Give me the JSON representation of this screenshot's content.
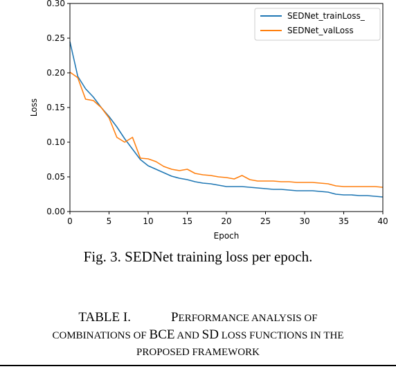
{
  "figure": {
    "caption": "Fig. 3. SEDNet training loss per epoch."
  },
  "table_title": {
    "label": "TABLE I.",
    "line1_big": "P",
    "line1_small": "ERFORMANCE ANALYSIS OF",
    "line2_small_a": "COMBINATIONS OF ",
    "line2_big_a": "BCE",
    "line2_small_b": " AND ",
    "line2_big_b": "SD",
    "line2_small_c": " LOSS FUNCTIONS IN THE",
    "line3_small": "PROPOSED FRAMEWORK"
  },
  "chart_data": {
    "type": "line",
    "xlabel": "Epoch",
    "ylabel": "Loss",
    "xlim": [
      0,
      40
    ],
    "ylim": [
      0,
      0.3
    ],
    "xticks": [
      "0",
      "5",
      "10",
      "15",
      "20",
      "25",
      "30",
      "35",
      "40"
    ],
    "yticks": [
      "0.00",
      "0.05",
      "0.10",
      "0.15",
      "0.20",
      "0.25",
      "0.30"
    ],
    "grid": false,
    "legend_position": "top-right",
    "x": [
      0,
      1,
      2,
      3,
      4,
      5,
      6,
      7,
      8,
      9,
      10,
      11,
      12,
      13,
      14,
      15,
      16,
      17,
      18,
      19,
      20,
      21,
      22,
      23,
      24,
      25,
      26,
      27,
      28,
      29,
      30,
      31,
      32,
      33,
      34,
      35,
      36,
      37,
      38,
      39,
      40
    ],
    "series": [
      {
        "name": "SEDNet_trainLoss_",
        "color": "#1f77b4",
        "values": [
          0.245,
          0.195,
          0.177,
          0.165,
          0.15,
          0.137,
          0.122,
          0.105,
          0.09,
          0.075,
          0.066,
          0.061,
          0.056,
          0.051,
          0.048,
          0.046,
          0.043,
          0.041,
          0.04,
          0.038,
          0.036,
          0.036,
          0.036,
          0.035,
          0.034,
          0.033,
          0.032,
          0.032,
          0.031,
          0.03,
          0.03,
          0.03,
          0.029,
          0.028,
          0.025,
          0.024,
          0.024,
          0.023,
          0.023,
          0.022,
          0.021
        ]
      },
      {
        "name": "SEDNet_valLoss",
        "color": "#ff7f0e",
        "values": [
          0.201,
          0.193,
          0.162,
          0.16,
          0.15,
          0.135,
          0.107,
          0.1,
          0.107,
          0.077,
          0.076,
          0.072,
          0.065,
          0.061,
          0.059,
          0.061,
          0.055,
          0.053,
          0.052,
          0.05,
          0.049,
          0.047,
          0.052,
          0.046,
          0.044,
          0.044,
          0.044,
          0.043,
          0.043,
          0.042,
          0.042,
          0.042,
          0.041,
          0.04,
          0.037,
          0.036,
          0.036,
          0.036,
          0.036,
          0.036,
          0.035
        ]
      }
    ]
  }
}
